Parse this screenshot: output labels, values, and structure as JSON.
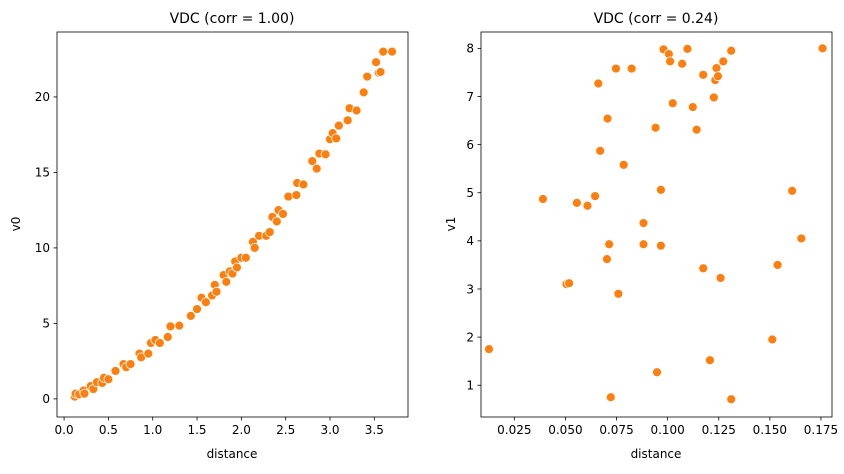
{
  "colors": {
    "points": "#ff7f0e",
    "point_edge": "#ffffff",
    "axes": "#000000",
    "background": "#ffffff"
  },
  "chart_data": [
    {
      "type": "scatter",
      "title": "VDC (corr = 1.00)",
      "xlabel": "distance",
      "ylabel": "v0",
      "xlim": [
        -0.08,
        3.88
      ],
      "ylim": [
        -1.2,
        24.3
      ],
      "xticks": [
        0.0,
        0.5,
        1.0,
        1.5,
        2.0,
        2.5,
        3.0,
        3.5
      ],
      "xtick_labels": [
        "0.0",
        "0.5",
        "1.0",
        "1.5",
        "2.0",
        "2.5",
        "3.0",
        "3.5"
      ],
      "yticks": [
        0,
        5,
        10,
        15,
        20
      ],
      "ytick_labels": [
        "0",
        "5",
        "10",
        "15",
        "20"
      ],
      "grid": false,
      "points": [
        [
          0.12,
          0.15
        ],
        [
          0.13,
          0.35
        ],
        [
          0.17,
          0.3
        ],
        [
          0.22,
          0.55
        ],
        [
          0.23,
          0.35
        ],
        [
          0.3,
          0.85
        ],
        [
          0.33,
          0.65
        ],
        [
          0.37,
          1.1
        ],
        [
          0.43,
          1.05
        ],
        [
          0.45,
          1.4
        ],
        [
          0.5,
          1.3
        ],
        [
          0.58,
          1.85
        ],
        [
          0.67,
          2.3
        ],
        [
          0.7,
          2.1
        ],
        [
          0.75,
          2.3
        ],
        [
          0.85,
          3.0
        ],
        [
          0.87,
          2.75
        ],
        [
          0.95,
          3.0
        ],
        [
          0.98,
          3.7
        ],
        [
          1.03,
          3.9
        ],
        [
          1.08,
          3.7
        ],
        [
          1.17,
          4.1
        ],
        [
          1.2,
          4.8
        ],
        [
          1.3,
          4.85
        ],
        [
          1.43,
          5.5
        ],
        [
          1.5,
          5.95
        ],
        [
          1.55,
          6.7
        ],
        [
          1.6,
          6.4
        ],
        [
          1.67,
          6.85
        ],
        [
          1.7,
          7.55
        ],
        [
          1.72,
          7.1
        ],
        [
          1.8,
          8.2
        ],
        [
          1.83,
          7.75
        ],
        [
          1.87,
          8.45
        ],
        [
          1.9,
          8.3
        ],
        [
          1.93,
          9.1
        ],
        [
          1.95,
          8.7
        ],
        [
          2.0,
          9.35
        ],
        [
          2.05,
          9.35
        ],
        [
          2.13,
          10.4
        ],
        [
          2.15,
          10.0
        ],
        [
          2.2,
          10.8
        ],
        [
          2.28,
          10.8
        ],
        [
          2.32,
          11.05
        ],
        [
          2.35,
          12.05
        ],
        [
          2.4,
          11.75
        ],
        [
          2.42,
          12.5
        ],
        [
          2.47,
          12.25
        ],
        [
          2.53,
          13.4
        ],
        [
          2.62,
          13.5
        ],
        [
          2.63,
          14.3
        ],
        [
          2.7,
          14.2
        ],
        [
          2.8,
          15.75
        ],
        [
          2.85,
          15.25
        ],
        [
          2.88,
          16.25
        ],
        [
          2.95,
          16.2
        ],
        [
          3.0,
          17.2
        ],
        [
          3.03,
          17.6
        ],
        [
          3.07,
          17.25
        ],
        [
          3.1,
          18.1
        ],
        [
          3.2,
          18.45
        ],
        [
          3.22,
          19.25
        ],
        [
          3.3,
          19.1
        ],
        [
          3.38,
          20.3
        ],
        [
          3.42,
          21.35
        ],
        [
          3.52,
          22.3
        ],
        [
          3.55,
          21.6
        ],
        [
          3.57,
          21.65
        ],
        [
          3.6,
          23.0
        ],
        [
          3.7,
          23.0
        ]
      ]
    },
    {
      "type": "scatter",
      "title": "VDC (corr = 0.24)",
      "xlabel": "distance",
      "ylabel": "v1",
      "xlim": [
        0.0087,
        0.1804
      ],
      "ylim": [
        0.34,
        8.34
      ],
      "xticks": [
        0.025,
        0.05,
        0.075,
        0.1,
        0.125,
        0.15,
        0.175
      ],
      "xtick_labels": [
        "0.025",
        "0.050",
        "0.075",
        "0.100",
        "0.125",
        "0.150",
        "0.175"
      ],
      "yticks": [
        1,
        2,
        3,
        4,
        5,
        6,
        7,
        8
      ],
      "ytick_labels": [
        "1",
        "2",
        "3",
        "4",
        "5",
        "6",
        "7",
        "8"
      ],
      "grid": false,
      "points": [
        [
          0.0126,
          1.75
        ],
        [
          0.039,
          4.87
        ],
        [
          0.0505,
          3.1
        ],
        [
          0.0518,
          3.12
        ],
        [
          0.0556,
          4.79
        ],
        [
          0.0608,
          4.73
        ],
        [
          0.0645,
          4.93
        ],
        [
          0.0661,
          7.27
        ],
        [
          0.067,
          5.87
        ],
        [
          0.0703,
          3.62
        ],
        [
          0.0706,
          6.54
        ],
        [
          0.0714,
          3.93
        ],
        [
          0.0722,
          0.75
        ],
        [
          0.0747,
          7.58
        ],
        [
          0.0759,
          2.9
        ],
        [
          0.0785,
          5.58
        ],
        [
          0.0824,
          7.58
        ],
        [
          0.0882,
          4.37
        ],
        [
          0.0882,
          3.93
        ],
        [
          0.0941,
          6.35
        ],
        [
          0.0948,
          1.27
        ],
        [
          0.0967,
          3.9
        ],
        [
          0.0967,
          5.06
        ],
        [
          0.098,
          7.98
        ],
        [
          0.1006,
          7.88
        ],
        [
          0.1012,
          7.73
        ],
        [
          0.1025,
          6.86
        ],
        [
          0.1071,
          7.68
        ],
        [
          0.1097,
          7.99
        ],
        [
          0.1123,
          6.78
        ],
        [
          0.1142,
          6.31
        ],
        [
          0.1174,
          7.45
        ],
        [
          0.1174,
          3.43
        ],
        [
          0.1207,
          1.52
        ],
        [
          0.1226,
          6.98
        ],
        [
          0.1233,
          7.34
        ],
        [
          0.1239,
          7.59
        ],
        [
          0.1246,
          7.42
        ],
        [
          0.1259,
          3.23
        ],
        [
          0.1272,
          7.73
        ],
        [
          0.1311,
          7.95
        ],
        [
          0.1311,
          0.71
        ],
        [
          0.1512,
          1.95
        ],
        [
          0.1538,
          3.5
        ],
        [
          0.1609,
          5.04
        ],
        [
          0.1654,
          4.05
        ],
        [
          0.1758,
          8.0
        ]
      ]
    }
  ]
}
